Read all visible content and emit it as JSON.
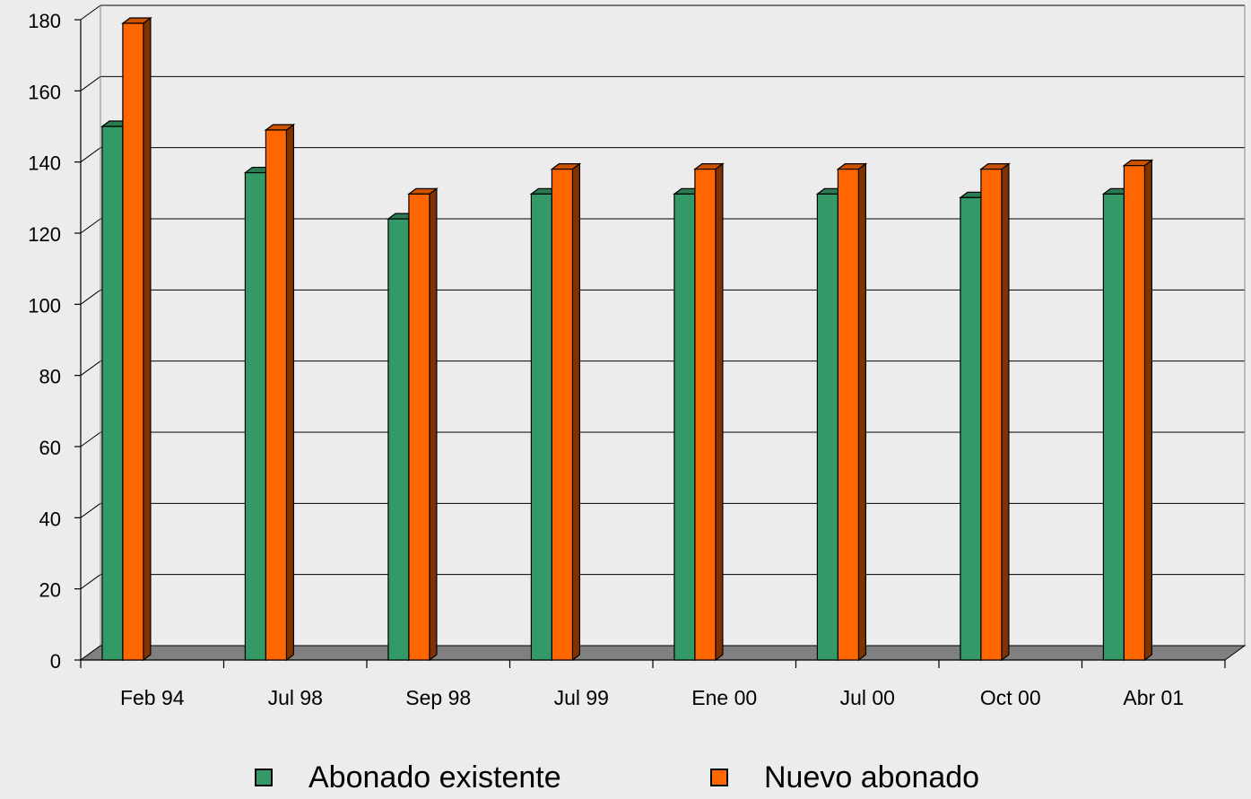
{
  "chart_data": {
    "type": "bar",
    "title": "",
    "xlabel": "",
    "ylabel": "",
    "ylim": [
      0,
      180
    ],
    "yticks": [
      0,
      20,
      40,
      60,
      80,
      100,
      120,
      140,
      160,
      180
    ],
    "grid": true,
    "legend_position": "bottom",
    "categories": [
      "Feb 94",
      "Jul 98",
      "Sep 98",
      "Jul 99",
      "Ene 00",
      "Jul 00",
      "Oct 00",
      "Abr 01"
    ],
    "series": [
      {
        "name": "Abonado existente",
        "color": "#339966",
        "values": [
          150,
          137,
          124,
          131,
          131,
          131,
          130,
          131
        ]
      },
      {
        "name": "Nuevo abonado",
        "color": "#ff6600",
        "values": [
          179,
          149,
          131,
          138,
          138,
          138,
          138,
          139
        ]
      }
    ],
    "colors": {
      "background": "#ececec",
      "floor": "#808080",
      "gridline": "#000000",
      "series_0_side": "#1a4d33",
      "series_1_side": "#803300"
    }
  }
}
